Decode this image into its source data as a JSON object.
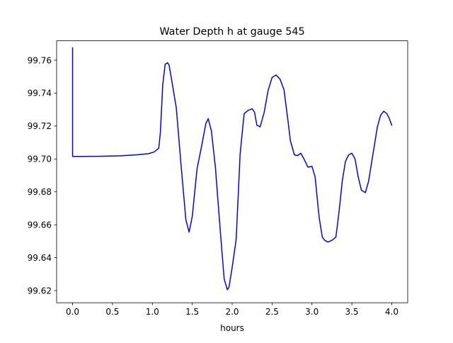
{
  "chart_data": {
    "type": "line",
    "title": "Water Depth h at gauge 545",
    "xlabel": "hours",
    "ylabel": "",
    "xlim": [
      -0.2,
      4.2
    ],
    "ylim": [
      99.6126,
      99.7718
    ],
    "xticks": [
      0.0,
      0.5,
      1.0,
      1.5,
      2.0,
      2.5,
      3.0,
      3.5,
      4.0
    ],
    "xtick_labels": [
      "0.0",
      "0.5",
      "1.0",
      "1.5",
      "2.0",
      "2.5",
      "3.0",
      "3.5",
      "4.0"
    ],
    "yticks": [
      99.62,
      99.64,
      99.66,
      99.68,
      99.7,
      99.72,
      99.74,
      99.76
    ],
    "ytick_labels": [
      "99.62",
      "99.64",
      "99.66",
      "99.68",
      "99.70",
      "99.72",
      "99.74",
      "99.76"
    ],
    "grid": false,
    "series": [
      {
        "color": "#0000ff",
        "x": [
          0.0,
          0.0,
          0.1,
          0.3,
          0.6,
          0.8,
          0.95,
          1.02,
          1.08,
          1.1,
          1.13,
          1.16,
          1.19,
          1.21,
          1.24,
          1.3,
          1.36,
          1.42,
          1.46,
          1.5,
          1.56,
          1.62,
          1.67,
          1.7,
          1.74,
          1.79,
          1.85,
          1.9,
          1.94,
          1.96,
          2.0,
          2.05,
          2.1,
          2.15,
          2.2,
          2.25,
          2.28,
          2.31,
          2.35,
          2.4,
          2.45,
          2.5,
          2.55,
          2.6,
          2.65,
          2.7,
          2.73,
          2.78,
          2.82,
          2.86,
          2.9,
          2.95,
          3.0,
          3.04,
          3.09,
          3.13,
          3.16,
          3.2,
          3.25,
          3.3,
          3.34,
          3.38,
          3.42,
          3.46,
          3.5,
          3.54,
          3.58,
          3.62,
          3.67,
          3.71,
          3.76,
          3.82,
          3.86,
          3.9,
          3.94,
          3.97,
          4.0
        ],
        "y": [
          99.7675,
          99.7015,
          99.7015,
          99.7016,
          99.7019,
          99.7025,
          99.7032,
          99.7042,
          99.7065,
          99.716,
          99.745,
          99.7575,
          99.7585,
          99.757,
          99.7485,
          99.731,
          99.696,
          99.663,
          99.6555,
          99.665,
          99.694,
          99.7085,
          99.7215,
          99.7245,
          99.717,
          99.695,
          99.657,
          99.627,
          99.6205,
          99.622,
          99.634,
          99.651,
          99.703,
          99.7275,
          99.7295,
          99.7305,
          99.7285,
          99.7205,
          99.7195,
          99.728,
          99.7415,
          99.7495,
          99.751,
          99.7485,
          99.742,
          99.723,
          99.711,
          99.7025,
          99.702,
          99.7035,
          99.7,
          99.695,
          99.6955,
          99.689,
          99.6645,
          99.6525,
          99.6505,
          99.6495,
          99.6505,
          99.6525,
          99.668,
          99.6865,
          99.6985,
          99.7025,
          99.7035,
          99.7,
          99.689,
          99.681,
          99.6795,
          99.6865,
          99.7015,
          99.7195,
          99.7265,
          99.729,
          99.7275,
          99.7245,
          99.7205
        ]
      }
    ]
  }
}
